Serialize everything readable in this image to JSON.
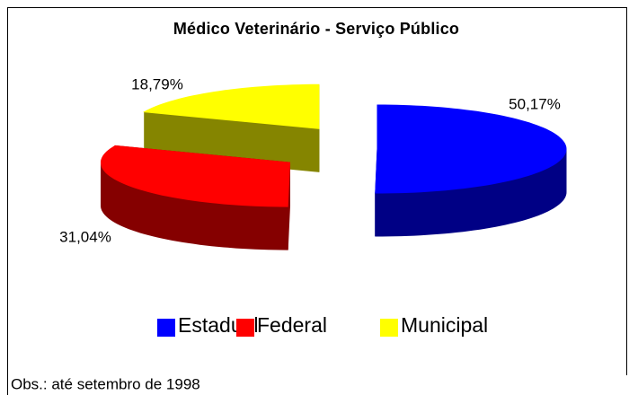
{
  "chart_data": {
    "type": "pie",
    "title": "Médico Veterinário - Serviço Público",
    "categories": [
      "Estadual",
      "Federal",
      "Municipal"
    ],
    "values": [
      50.17,
      31.04,
      18.79
    ],
    "value_labels": [
      "50,17%",
      "31,04%",
      "18,79%"
    ],
    "colors": [
      "#0000ff",
      "#ff0000",
      "#ffff00"
    ],
    "annotation": "Obs.: até setembro de 1998"
  }
}
